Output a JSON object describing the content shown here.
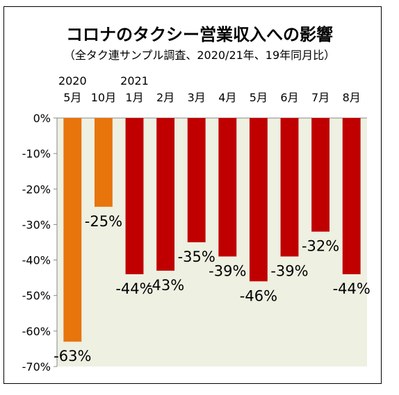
{
  "chart_data": {
    "type": "bar",
    "title": "コロナのタクシー営業収入への影響",
    "subtitle": "（全タク連サンプル調査、2020/21年、19年同月比）",
    "year_labels": [
      {
        "text": "2020",
        "category_index": 0
      },
      {
        "text": "2021",
        "category_index": 2
      }
    ],
    "categories": [
      "5月",
      "10月",
      "1月",
      "2月",
      "3月",
      "4月",
      "5月",
      "6月",
      "7月",
      "8月"
    ],
    "values": [
      -63,
      -25,
      -44,
      -43,
      -35,
      -39,
      -46,
      -39,
      -32,
      -44
    ],
    "data_labels": [
      "-63%",
      "-25%",
      "-44%",
      "-43%",
      "-35%",
      "-39%",
      "-46%",
      "-39%",
      "-32%",
      "-44%"
    ],
    "yticks": [
      "0%",
      "-10%",
      "-20%",
      "-30%",
      "-40%",
      "-50%",
      "-60%",
      "-70%"
    ],
    "ylim": [
      -70,
      0
    ],
    "xlabel": "",
    "ylabel": "",
    "grid": false,
    "colors": {
      "year_2020": "#E8740C",
      "year_2021": "#C00000",
      "plot_background": "#EEF0E2"
    },
    "bar_year": [
      2020,
      2020,
      2021,
      2021,
      2021,
      2021,
      2021,
      2021,
      2021,
      2021
    ]
  }
}
